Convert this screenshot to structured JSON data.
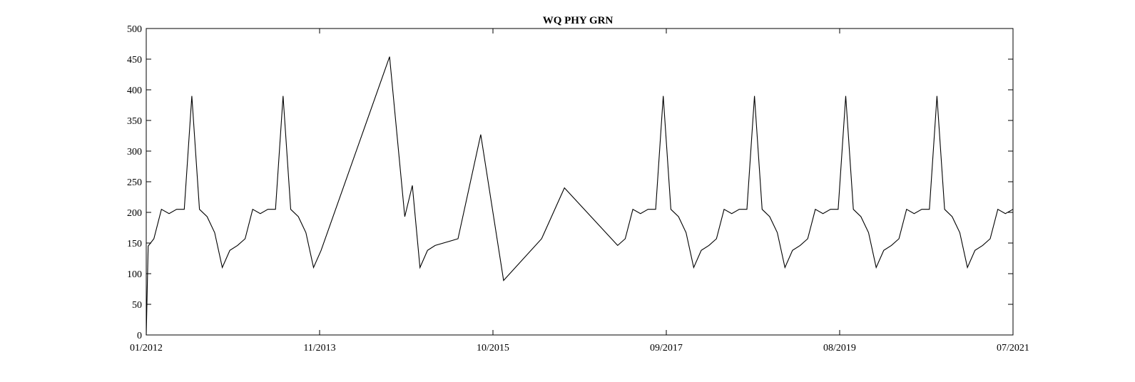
{
  "chart_data": {
    "type": "line",
    "title": "WQ PHY GRN",
    "xlabel": "",
    "ylabel": "",
    "x_ticks": [
      "01/2012",
      "11/2013",
      "10/2015",
      "09/2017",
      "08/2019",
      "07/2021"
    ],
    "y_ticks": [
      0,
      50,
      100,
      150,
      200,
      250,
      300,
      350,
      400,
      450,
      500
    ],
    "ylim": [
      0,
      500
    ],
    "xlim": [
      "2012-01",
      "2021-07"
    ],
    "grid": false,
    "line_color": "#000000",
    "series": [
      {
        "x": [
          "2012-01",
          "2012-01",
          "2012-02",
          "2012-03",
          "2012-04",
          "2012-05",
          "2012-06",
          "2012-07",
          "2012-08",
          "2012-09",
          "2012-10",
          "2012-11",
          "2012-12",
          "2013-01",
          "2013-02",
          "2013-03",
          "2013-04",
          "2013-05",
          "2013-06",
          "2013-07",
          "2013-08",
          "2013-09",
          "2013-10",
          "2013-11",
          "2013-12",
          "2014-09",
          "2014-11",
          "2014-12",
          "2015-01",
          "2015-02",
          "2015-03",
          "2015-06",
          "2015-09",
          "2015-12",
          "2016-05",
          "2016-08",
          "2017-03",
          "2017-04",
          "2017-05",
          "2017-06",
          "2017-07",
          "2017-08",
          "2017-09",
          "2017-10",
          "2017-11",
          "2017-12",
          "2018-01",
          "2018-02",
          "2018-03",
          "2018-04",
          "2018-05",
          "2018-06",
          "2018-07",
          "2018-08",
          "2018-09",
          "2018-10",
          "2018-11",
          "2018-12",
          "2019-01",
          "2019-02",
          "2019-03",
          "2019-04",
          "2019-05",
          "2019-06",
          "2019-07",
          "2019-08",
          "2019-09",
          "2019-10",
          "2019-11",
          "2019-12",
          "2020-01",
          "2020-02",
          "2020-03",
          "2020-04",
          "2020-05",
          "2020-06",
          "2020-07",
          "2020-08",
          "2020-09",
          "2020-10",
          "2020-11",
          "2020-12",
          "2021-01",
          "2021-02",
          "2021-03",
          "2021-04",
          "2021-05",
          "2021-06",
          "2021-07"
        ],
        "values": [
          0,
          145,
          157,
          205,
          198,
          205,
          205,
          390,
          205,
          193,
          167,
          110,
          138,
          146,
          157,
          205,
          198,
          205,
          205,
          390,
          205,
          193,
          167,
          110,
          138,
          454,
          193,
          244,
          110,
          138,
          146,
          157,
          327,
          89,
          157,
          240,
          146,
          157,
          205,
          198,
          205,
          205,
          390,
          205,
          193,
          167,
          110,
          138,
          146,
          157,
          205,
          198,
          205,
          205,
          390,
          205,
          193,
          167,
          110,
          138,
          146,
          157,
          205,
          198,
          205,
          205,
          390,
          205,
          193,
          167,
          110,
          138,
          146,
          157,
          205,
          198,
          205,
          205,
          390,
          205,
          193,
          167,
          110,
          138,
          146,
          157,
          205,
          198,
          205
        ]
      }
    ]
  }
}
